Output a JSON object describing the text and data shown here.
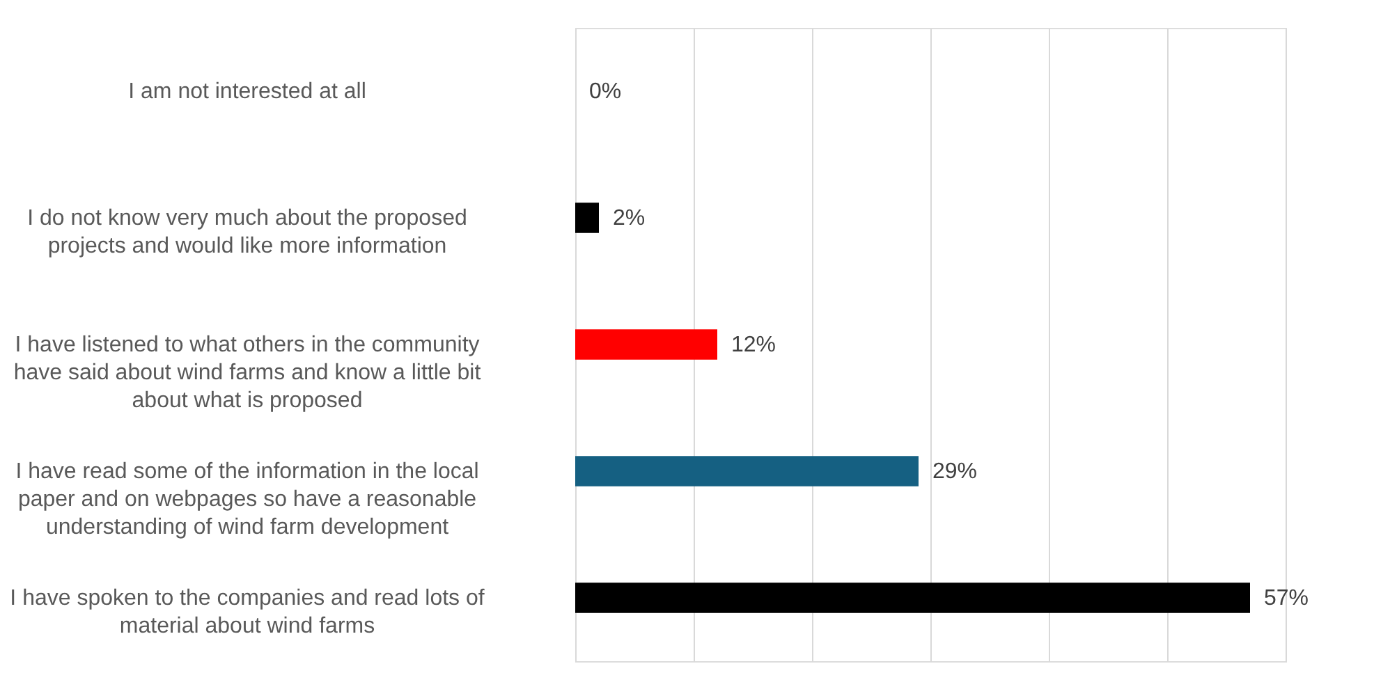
{
  "chart_data": {
    "type": "bar",
    "orientation": "horizontal",
    "categories": [
      "I am not interested at all",
      "I do not know very much about the proposed projects and would like more information",
      "I have listened to what others in the community have said about wind farms and know a little bit about what is proposed",
      "I have read some of the information in the local paper and on webpages so have a reasonable understanding of wind farm development",
      "I have spoken to the companies and read lots of material about wind farms"
    ],
    "values": [
      0,
      2,
      12,
      29,
      57
    ],
    "colors": [
      "#000000",
      "#000000",
      "#ff0000",
      "#156082",
      "#000000"
    ],
    "value_labels": [
      "0%",
      "2%",
      "12%",
      "29%",
      "57%"
    ],
    "xlim": [
      0,
      60
    ],
    "xticks": [
      {
        "value": 0,
        "label": null
      },
      {
        "value": 10,
        "label": null
      },
      {
        "value": 20,
        "label": null
      },
      {
        "value": 30,
        "label": null
      },
      {
        "value": 40,
        "label": null
      },
      {
        "value": 50,
        "label": null
      },
      {
        "value": 60,
        "label": null
      }
    ],
    "grid": "x",
    "tick_labels": "y"
  }
}
